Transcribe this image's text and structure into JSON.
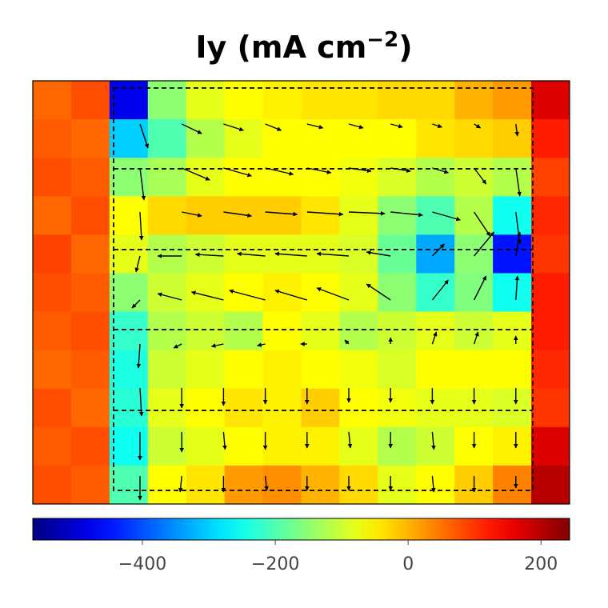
{
  "chart_data": {
    "type": "heatmap",
    "title": {
      "text": "Iy (mA cm",
      "sup": "−2",
      "close": ")"
    },
    "colormap": "jet",
    "clim": [
      -565,
      243
    ],
    "cticks": [
      {
        "value": -400,
        "label": "−400"
      },
      {
        "value": -200,
        "label": "−200"
      },
      0,
      200
    ],
    "values": [
      [
        60,
        80,
        -480,
        -150,
        -80,
        -60,
        -50,
        -40,
        -40,
        -30,
        -30,
        0,
        20,
        170
      ],
      [
        70,
        60,
        -300,
        -200,
        -120,
        -80,
        -60,
        -60,
        -60,
        -60,
        -40,
        -30,
        -20,
        120
      ],
      [
        80,
        70,
        -150,
        -130,
        -80,
        -60,
        -60,
        -60,
        -70,
        -90,
        -120,
        -100,
        -120,
        90
      ],
      [
        60,
        80,
        -60,
        -30,
        -20,
        -20,
        -20,
        -40,
        -80,
        -150,
        -200,
        -120,
        -250,
        110
      ],
      [
        90,
        60,
        -80,
        -120,
        -100,
        -80,
        -80,
        -80,
        -90,
        -180,
        -330,
        -150,
        -450,
        100
      ],
      [
        80,
        70,
        -150,
        -100,
        -80,
        -60,
        -50,
        -60,
        -80,
        -150,
        -220,
        -160,
        -250,
        120
      ],
      [
        70,
        80,
        -220,
        -120,
        -100,
        -120,
        -60,
        -80,
        -120,
        -100,
        -80,
        -100,
        -80,
        120
      ],
      [
        60,
        70,
        -240,
        -100,
        -80,
        -60,
        -50,
        -60,
        -70,
        -90,
        -60,
        -60,
        -60,
        110
      ],
      [
        80,
        60,
        -230,
        -80,
        -60,
        -40,
        -50,
        -20,
        -60,
        -70,
        -80,
        -80,
        -90,
        100
      ],
      [
        70,
        80,
        -250,
        -100,
        -80,
        -60,
        -50,
        -50,
        -80,
        -120,
        -100,
        -60,
        -50,
        170
      ],
      [
        80,
        70,
        -200,
        -60,
        -40,
        20,
        30,
        0,
        -30,
        -80,
        -60,
        -20,
        40,
        200
      ]
    ],
    "arrows": {
      "u": [
        [
          10,
          25,
          25,
          20,
          20,
          18,
          15,
          12,
          8,
          2
        ],
        [
          5,
          35,
          35,
          35,
          30,
          28,
          25,
          20,
          15,
          5
        ],
        [
          2,
          25,
          35,
          40,
          45,
          45,
          40,
          35,
          20,
          5
        ],
        [
          -5,
          -30,
          -35,
          -35,
          -40,
          -40,
          -30,
          15,
          25,
          5
        ],
        [
          -10,
          -30,
          -40,
          -45,
          -40,
          -40,
          -30,
          20,
          15,
          2
        ],
        [
          -2,
          -10,
          -15,
          -10,
          -8,
          -5,
          0,
          5,
          5,
          0
        ],
        [
          2,
          0,
          0,
          0,
          0,
          0,
          0,
          0,
          0,
          0
        ],
        [
          0,
          0,
          2,
          0,
          0,
          2,
          0,
          2,
          0,
          0
        ],
        [
          0,
          -2,
          0,
          2,
          0,
          0,
          0,
          2,
          0,
          0
        ]
      ],
      "v": [
        [
          -30,
          -12,
          -8,
          -8,
          -5,
          -5,
          -4,
          -4,
          -5,
          -15
        ],
        [
          -40,
          -15,
          -10,
          -8,
          -6,
          -4,
          -4,
          -6,
          -20,
          -35
        ],
        [
          -35,
          -5,
          -5,
          -3,
          -3,
          -2,
          -4,
          -10,
          -30,
          -40
        ],
        [
          -20,
          0,
          2,
          3,
          3,
          3,
          5,
          15,
          30,
          30
        ],
        [
          -10,
          8,
          10,
          12,
          12,
          15,
          20,
          25,
          30,
          30
        ],
        [
          -30,
          -5,
          -3,
          -2,
          0,
          5,
          8,
          15,
          15,
          10
        ],
        [
          -35,
          -25,
          -22,
          -20,
          -20,
          -18,
          -18,
          -20,
          -20,
          -20
        ],
        [
          -35,
          -25,
          -22,
          -22,
          -20,
          -20,
          -20,
          -22,
          -20,
          -20
        ],
        [
          -30,
          -20,
          -20,
          -18,
          -18,
          -18,
          -18,
          -20,
          -20,
          -15
        ]
      ]
    }
  }
}
